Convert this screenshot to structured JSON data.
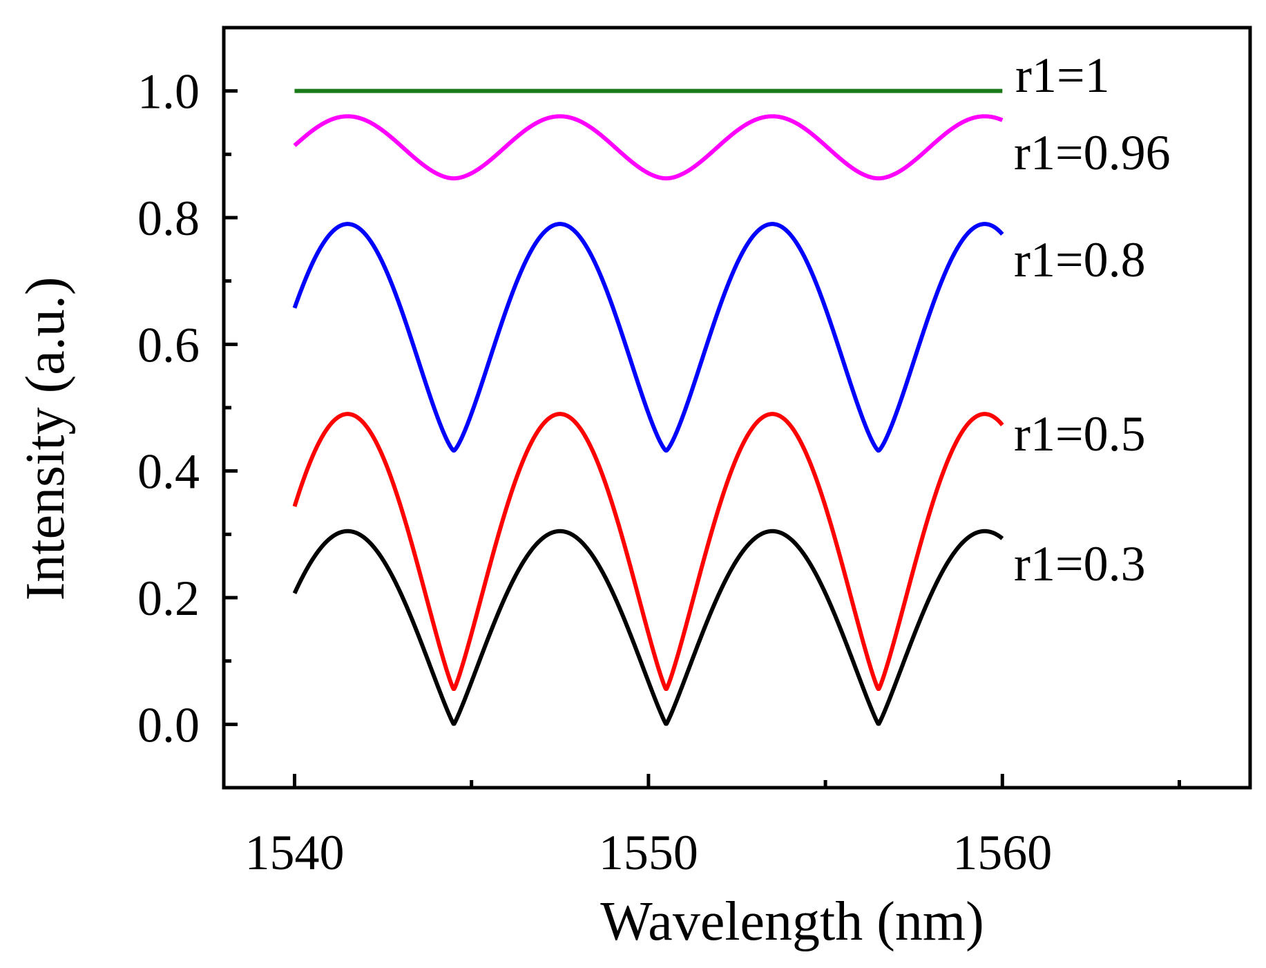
{
  "chart_data": {
    "type": "line",
    "title": "",
    "xlabel": "Wavelength (nm)",
    "ylabel": "Intensity (a.u.)",
    "xlim": [
      1538,
      1567
    ],
    "ylim": [
      -0.1,
      1.1
    ],
    "x_ticks": [
      {
        "value": 1540,
        "label": "1540"
      },
      {
        "value": 1550,
        "label": "1550"
      },
      {
        "value": 1560,
        "label": "1560"
      }
    ],
    "x_minor_ticks": [
      1545,
      1555,
      1565
    ],
    "y_ticks": [
      {
        "value": 0.0,
        "label": "0.0"
      },
      {
        "value": 0.2,
        "label": "0.2"
      },
      {
        "value": 0.4,
        "label": "0.4"
      },
      {
        "value": 0.6,
        "label": "0.6"
      },
      {
        "value": 0.8,
        "label": "0.8"
      },
      {
        "value": 1.0,
        "label": "1.0"
      }
    ],
    "y_minor_ticks": [
      0.1,
      0.3,
      0.5,
      0.7,
      0.9
    ],
    "grid": false,
    "x_range": [
      1540,
      1560
    ],
    "period_nm": 6,
    "first_peak_nm": 1541.5,
    "series": [
      {
        "name": "r1=1",
        "label": "r1=1",
        "color": "#1a7a1a",
        "min": 1.0,
        "max": 1.0,
        "sharpness": 1.0
      },
      {
        "name": "r1=0.96",
        "label": "r1=0.96",
        "color": "#ff00ff",
        "min": 0.862,
        "max": 0.96,
        "sharpness": 0.3
      },
      {
        "name": "r1=0.8",
        "label": "r1=0.8",
        "color": "#0000ff",
        "min": 0.432,
        "max": 0.79,
        "sharpness": 0.72
      },
      {
        "name": "r1=0.5",
        "label": "r1=0.5",
        "color": "#ff0000",
        "min": 0.055,
        "max": 0.49,
        "sharpness": 0.85
      },
      {
        "name": "r1=0.3",
        "label": "r1=0.3",
        "color": "#000000",
        "min": 0.0,
        "max": 0.305,
        "sharpness": 0.9
      }
    ]
  }
}
